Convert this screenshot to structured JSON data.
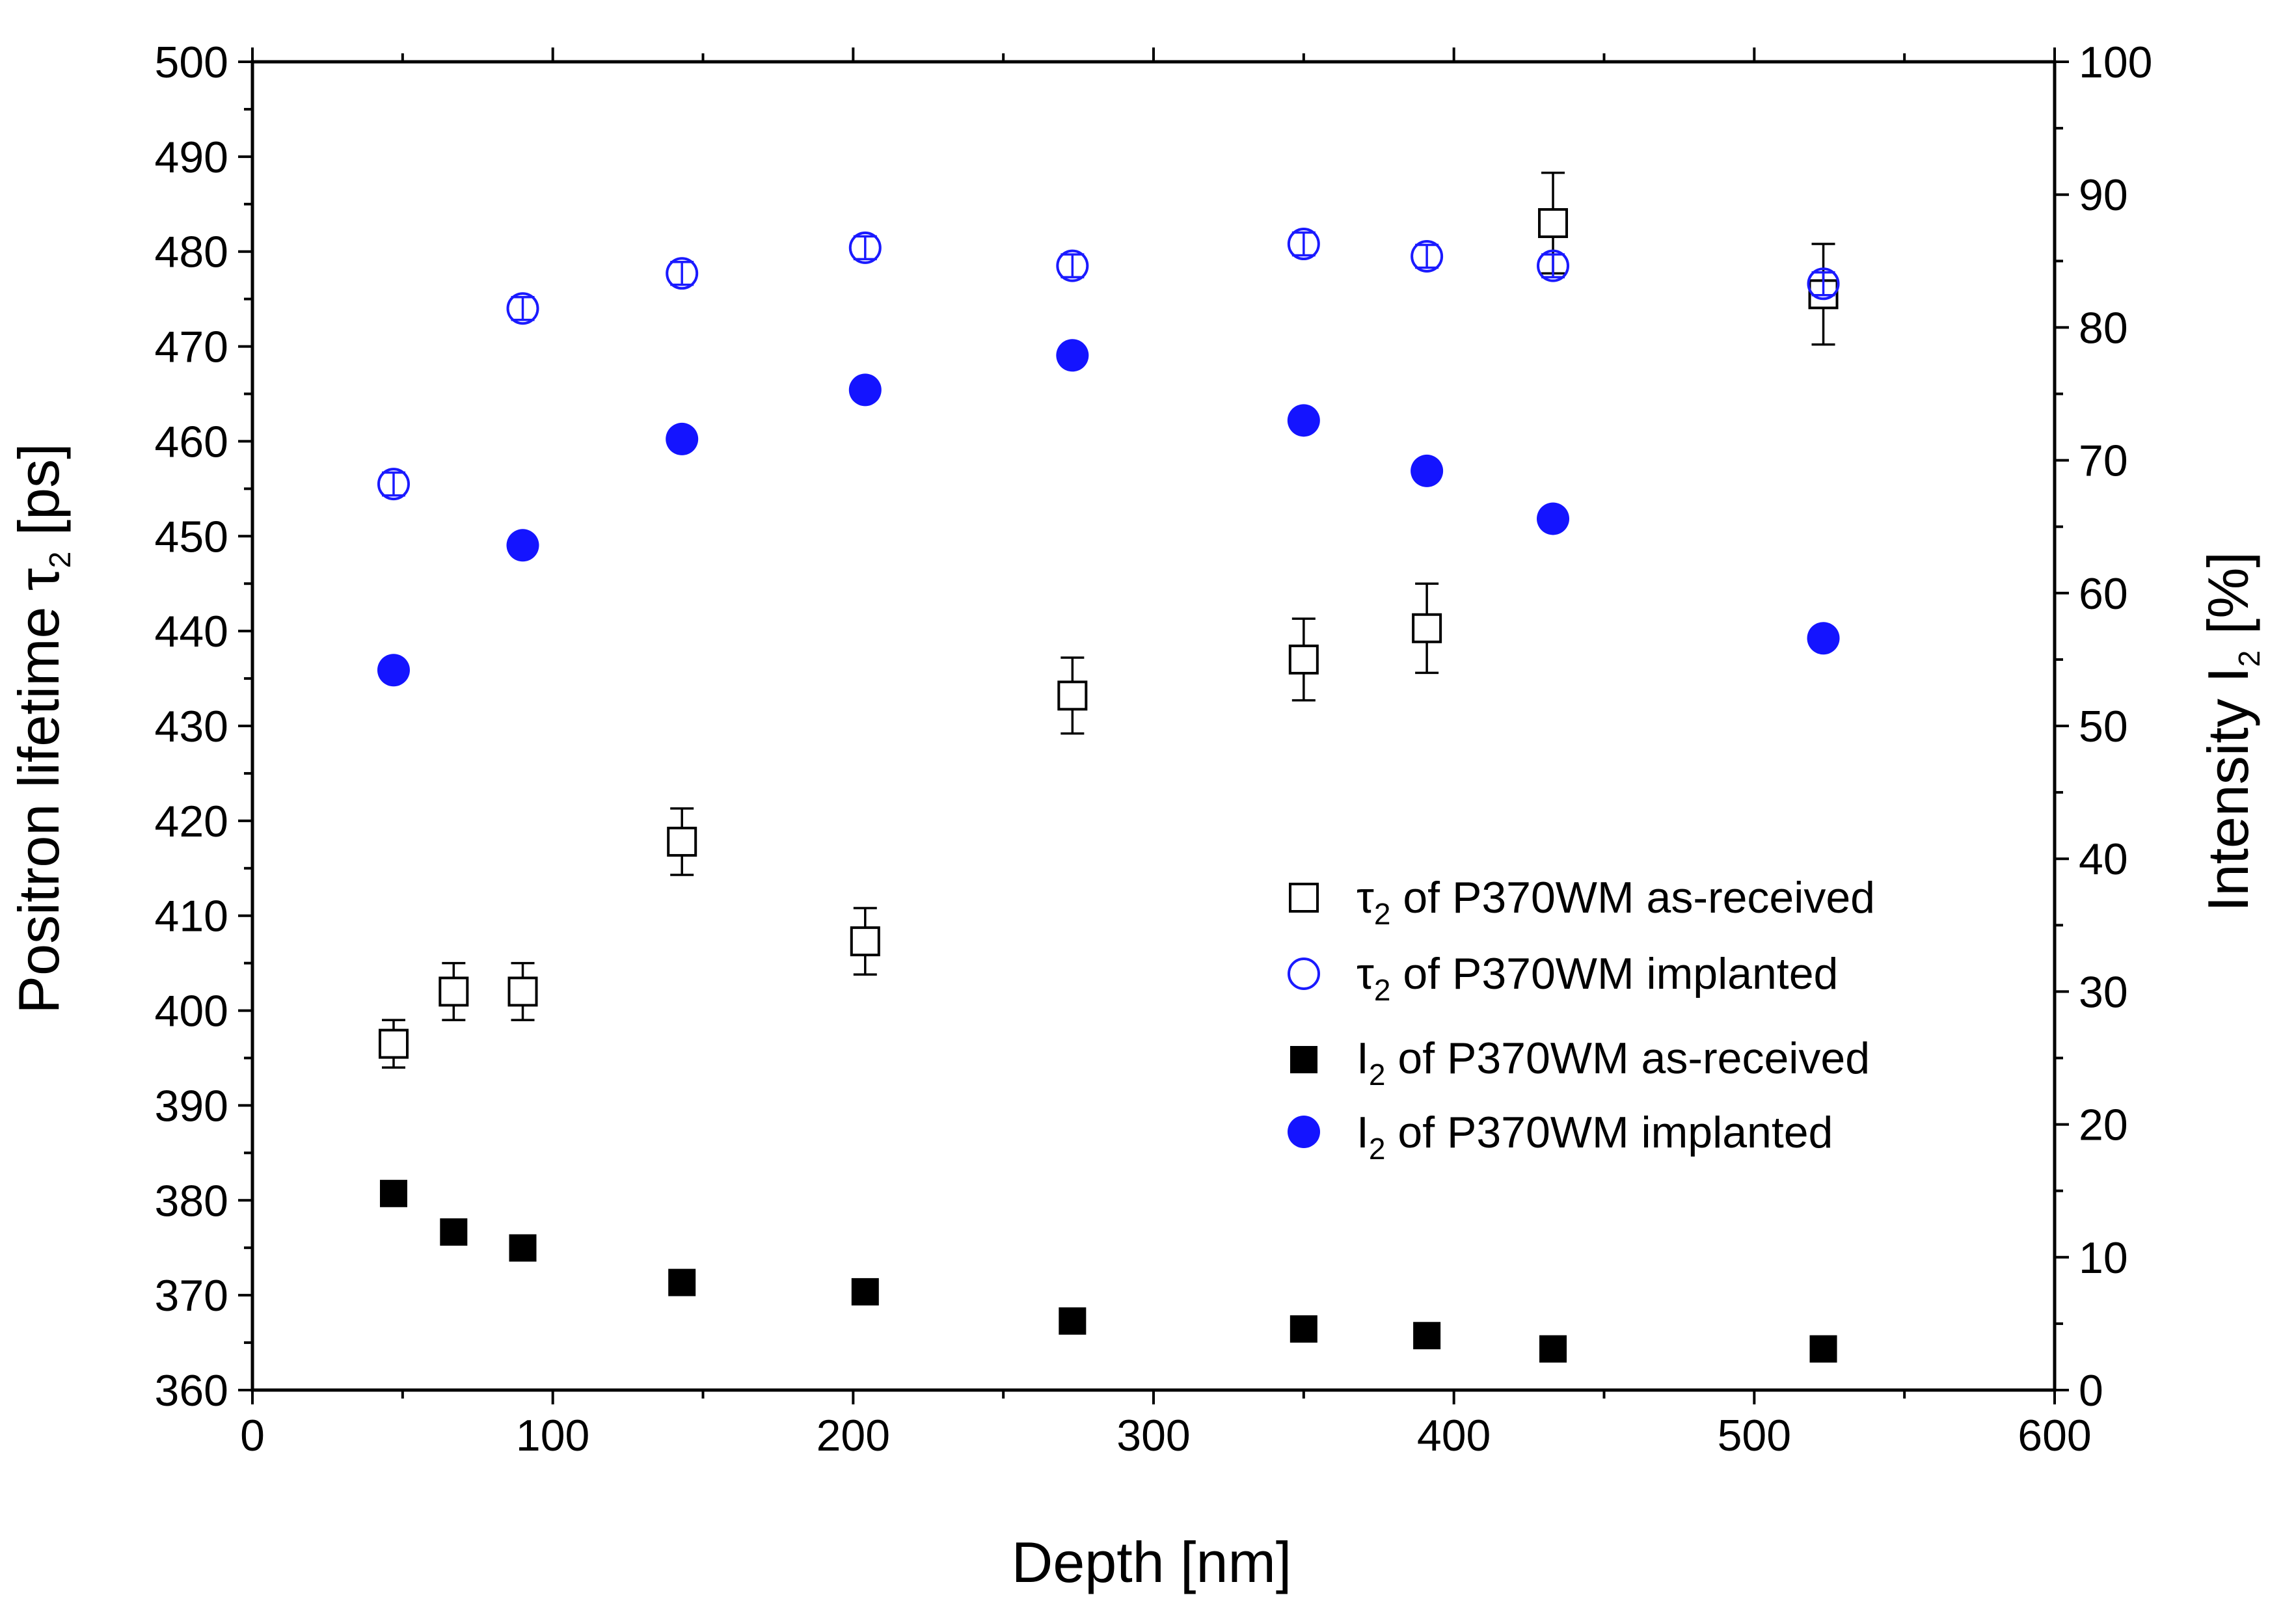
{
  "chart_data": {
    "type": "scatter",
    "xlabel": "Depth [nm]",
    "ylabel_left": {
      "main": "Positron lifetime τ",
      "sub": "2",
      "unit": " [ps]"
    },
    "ylabel_right": {
      "main": "Intensity I",
      "sub": "2",
      "unit": " [%]"
    },
    "x_range": [
      0,
      600
    ],
    "x_ticks": [
      "0",
      "100",
      "200",
      "300",
      "400",
      "500",
      "600"
    ],
    "y_left_range": [
      360,
      500
    ],
    "y_left_ticks": [
      "360",
      "370",
      "380",
      "390",
      "400",
      "410",
      "420",
      "430",
      "440",
      "450",
      "460",
      "470",
      "480",
      "490",
      "500"
    ],
    "y_right_range": [
      0,
      100
    ],
    "y_right_ticks": [
      "0",
      "10",
      "20",
      "30",
      "40",
      "50",
      "60",
      "70",
      "80",
      "90",
      "100"
    ],
    "grid": false,
    "legend_position": "center-right",
    "series": [
      {
        "name": {
          "prefix": "τ",
          "sub": "2",
          "rest": " of P370WM as-received"
        },
        "axis": "left",
        "marker": "square-open",
        "color": "#000000",
        "points": [
          {
            "x": 47,
            "y": 396.5,
            "err": 2.5
          },
          {
            "x": 67,
            "y": 402,
            "err": 3
          },
          {
            "x": 90,
            "y": 402,
            "err": 3
          },
          {
            "x": 143,
            "y": 417.8,
            "err": 3.5
          },
          {
            "x": 204,
            "y": 407.3,
            "err": 3.5
          },
          {
            "x": 273,
            "y": 433.2,
            "err": 4
          },
          {
            "x": 350,
            "y": 437,
            "err": 4.3
          },
          {
            "x": 391,
            "y": 440.3,
            "err": 4.7
          },
          {
            "x": 433,
            "y": 483,
            "err": 5.3
          },
          {
            "x": 523,
            "y": 475.5,
            "err": 5.3
          }
        ]
      },
      {
        "name": {
          "prefix": "τ",
          "sub": "2",
          "rest": " of P370WM implanted"
        },
        "axis": "left",
        "marker": "circle-open",
        "color": "#1a1aff",
        "points": [
          {
            "x": 47,
            "y": 455.5,
            "err": 1.2
          },
          {
            "x": 90,
            "y": 474,
            "err": 1.2
          },
          {
            "x": 143,
            "y": 477.7,
            "err": 1.2
          },
          {
            "x": 204,
            "y": 480.4,
            "err": 1.2
          },
          {
            "x": 273,
            "y": 478.5,
            "err": 1.2
          },
          {
            "x": 350,
            "y": 480.8,
            "err": 1.2
          },
          {
            "x": 391,
            "y": 479.5,
            "err": 1.2
          },
          {
            "x": 433,
            "y": 478.5,
            "err": 1.2
          },
          {
            "x": 523,
            "y": 476.6,
            "err": 1.2
          }
        ]
      },
      {
        "name": {
          "prefix": "I",
          "sub": "2",
          "rest": " of P370WM as-received"
        },
        "axis": "right",
        "marker": "square-filled",
        "color": "#000000",
        "points": [
          {
            "x": 47,
            "y": 14.8
          },
          {
            "x": 67,
            "y": 11.9
          },
          {
            "x": 90,
            "y": 10.7
          },
          {
            "x": 143,
            "y": 8.1
          },
          {
            "x": 204,
            "y": 7.4
          },
          {
            "x": 273,
            "y": 5.2
          },
          {
            "x": 350,
            "y": 4.6
          },
          {
            "x": 391,
            "y": 4.1
          },
          {
            "x": 433,
            "y": 3.1
          },
          {
            "x": 523,
            "y": 3.1
          }
        ]
      },
      {
        "name": {
          "prefix": "I",
          "sub": "2",
          "rest": " of P370WM implanted"
        },
        "axis": "right",
        "marker": "circle-filled",
        "color": "#1414ff",
        "points": [
          {
            "x": 47,
            "y": 54.2
          },
          {
            "x": 90,
            "y": 63.6
          },
          {
            "x": 143,
            "y": 71.6
          },
          {
            "x": 204,
            "y": 75.3
          },
          {
            "x": 273,
            "y": 77.9
          },
          {
            "x": 350,
            "y": 73
          },
          {
            "x": 391,
            "y": 69.2
          },
          {
            "x": 433,
            "y": 65.6
          },
          {
            "x": 523,
            "y": 56.6
          }
        ]
      }
    ]
  }
}
